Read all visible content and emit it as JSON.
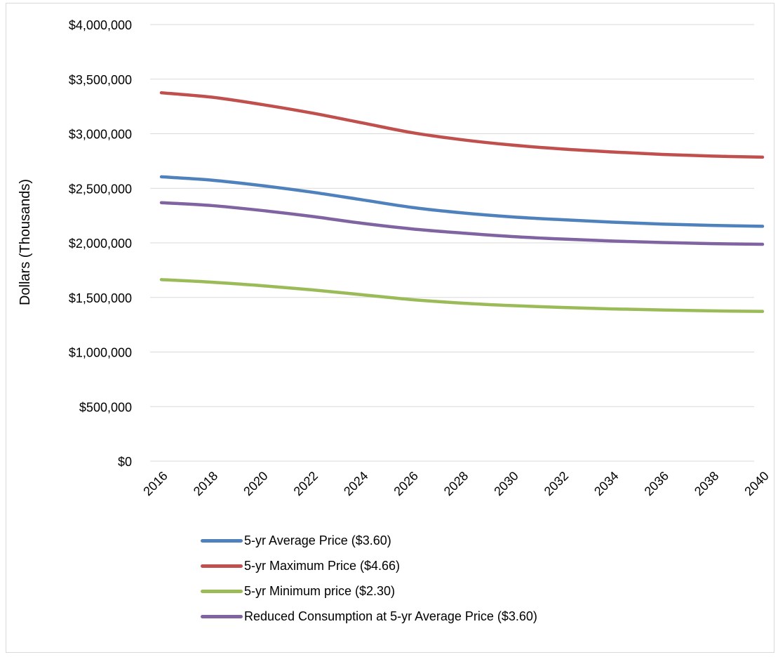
{
  "chart_data": {
    "type": "line",
    "title": "",
    "xlabel": "",
    "ylabel": "Dollars (Thousands)",
    "ylim": [
      0,
      4000000
    ],
    "yticks": [
      0,
      500000,
      1000000,
      1500000,
      2000000,
      2500000,
      3000000,
      3500000,
      4000000
    ],
    "ytick_labels": [
      "$0",
      "$500,000",
      "$1,000,000",
      "$1,500,000",
      "$2,000,000",
      "$2,500,000",
      "$3,000,000",
      "$3,500,000",
      "$4,000,000"
    ],
    "x": [
      2016,
      2018,
      2020,
      2022,
      2024,
      2026,
      2028,
      2030,
      2032,
      2034,
      2036,
      2038,
      2040
    ],
    "xtick_labels": [
      "2016",
      "2018",
      "2020",
      "2022",
      "2024",
      "2026",
      "2028",
      "2030",
      "2032",
      "2034",
      "2036",
      "2038",
      "2040"
    ],
    "grid": true,
    "legend_position": "bottom",
    "series": [
      {
        "name": "5-yr Average Price ($3.60)",
        "color": "#4f81bd",
        "values": [
          2605000,
          2575000,
          2525000,
          2465000,
          2395000,
          2325000,
          2275000,
          2238000,
          2212000,
          2190000,
          2172000,
          2160000,
          2152000
        ]
      },
      {
        "name": "5-yr Maximum Price ($4.66)",
        "color": "#c0504d",
        "values": [
          3375000,
          3335000,
          3268000,
          3190000,
          3100000,
          3010000,
          2945000,
          2896000,
          2860000,
          2833000,
          2810000,
          2795000,
          2785000
        ]
      },
      {
        "name": "5-yr Minimum price ($2.30)",
        "color": "#9bbb59",
        "values": [
          1663000,
          1640000,
          1608000,
          1570000,
          1525000,
          1480000,
          1448000,
          1425000,
          1408000,
          1395000,
          1385000,
          1377000,
          1372000
        ]
      },
      {
        "name": "Reduced Consumption at 5-yr Average Price ($3.60)",
        "color": "#8064a2",
        "values": [
          2368000,
          2342000,
          2297000,
          2243000,
          2180000,
          2128000,
          2090000,
          2058000,
          2035000,
          2017000,
          2003000,
          1993000,
          1987000
        ]
      }
    ]
  }
}
